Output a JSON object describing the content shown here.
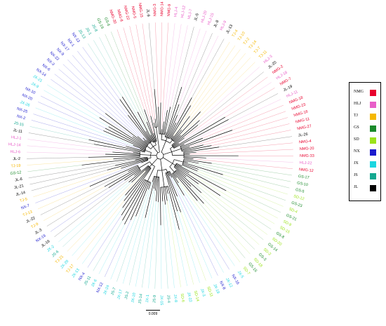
{
  "legend": [
    {
      "label": "NMG",
      "color": "#e8002d"
    },
    {
      "label": "HLJ",
      "color": "#e85ec8"
    },
    {
      "label": "TJ",
      "color": "#f5b700"
    },
    {
      "label": "GS",
      "color": "#1a8a2a"
    },
    {
      "label": "SD",
      "color": "#9be31a"
    },
    {
      "label": "NX",
      "color": "#1a1acd"
    },
    {
      "label": "JX",
      "color": "#1ad6e0"
    },
    {
      "label": "JS",
      "color": "#14a890"
    },
    {
      "label": "JL",
      "color": "#000000"
    }
  ],
  "scale_bar": {
    "label": "0.009"
  },
  "tips": [
    {
      "label": "NMG-3",
      "group": "NMG"
    },
    {
      "label": "NMG-14",
      "group": "NMG"
    },
    {
      "label": "NMG-9",
      "group": "NMG"
    },
    {
      "label": "HLJ-4",
      "group": "HLJ"
    },
    {
      "label": "HLJ-12",
      "group": "HLJ"
    },
    {
      "label": "HLJ-7",
      "group": "HLJ"
    },
    {
      "label": "JL-5",
      "group": "JL"
    },
    {
      "label": "HLJ-20",
      "group": "HLJ"
    },
    {
      "label": "HLJ-15",
      "group": "HLJ"
    },
    {
      "label": "JL-8",
      "group": "JL"
    },
    {
      "label": "HLJ-9",
      "group": "HLJ"
    },
    {
      "label": "JL-13",
      "group": "JL"
    },
    {
      "label": "TJ-4",
      "group": "TJ"
    },
    {
      "label": "TJ-10",
      "group": "TJ"
    },
    {
      "label": "TJ-2",
      "group": "TJ"
    },
    {
      "label": "TJ-14",
      "group": "TJ"
    },
    {
      "label": "TJ-7",
      "group": "TJ"
    },
    {
      "label": "TJ-11",
      "group": "TJ"
    },
    {
      "label": "HLJ-3",
      "group": "HLJ"
    },
    {
      "label": "JL-20",
      "group": "JL"
    },
    {
      "label": "NMG-2",
      "group": "NMG"
    },
    {
      "label": "HLJ-18",
      "group": "HLJ"
    },
    {
      "label": "NMG-7",
      "group": "NMG"
    },
    {
      "label": "JL-19",
      "group": "JL"
    },
    {
      "label": "HLJ-11",
      "group": "HLJ"
    },
    {
      "label": "NMG-18",
      "group": "NMG"
    },
    {
      "label": "NMG-23",
      "group": "NMG"
    },
    {
      "label": "NMG-16",
      "group": "NMG"
    },
    {
      "label": "NMG-11",
      "group": "NMG"
    },
    {
      "label": "NMG-27",
      "group": "NMG"
    },
    {
      "label": "JL-26",
      "group": "JL"
    },
    {
      "label": "NMG-4",
      "group": "NMG"
    },
    {
      "label": "NMG-20",
      "group": "NMG"
    },
    {
      "label": "NMG-33",
      "group": "NMG"
    },
    {
      "label": "HLJ-22",
      "group": "HLJ"
    },
    {
      "label": "NMG-12",
      "group": "NMG"
    },
    {
      "label": "GS-17",
      "group": "GS"
    },
    {
      "label": "GS-10",
      "group": "GS"
    },
    {
      "label": "GS-5",
      "group": "GS"
    },
    {
      "label": "SD-12",
      "group": "SD"
    },
    {
      "label": "GS-23",
      "group": "GS"
    },
    {
      "label": "SD-4",
      "group": "SD"
    },
    {
      "label": "GS-21",
      "group": "GS"
    },
    {
      "label": "SD-9",
      "group": "SD"
    },
    {
      "label": "SD-15",
      "group": "SD"
    },
    {
      "label": "GS-8",
      "group": "GS"
    },
    {
      "label": "SD-20",
      "group": "SD"
    },
    {
      "label": "GS-14",
      "group": "GS"
    },
    {
      "label": "SD-2",
      "group": "SD"
    },
    {
      "label": "GS-3",
      "group": "GS"
    },
    {
      "label": "SD-18",
      "group": "SD"
    },
    {
      "label": "GS-16",
      "group": "GS"
    },
    {
      "label": "SD-7",
      "group": "SD"
    },
    {
      "label": "JX-5",
      "group": "JX"
    },
    {
      "label": "NX-16",
      "group": "NX"
    },
    {
      "label": "JX-12",
      "group": "JX"
    },
    {
      "label": "NX-8",
      "group": "NX"
    },
    {
      "label": "JX-19",
      "group": "JX"
    },
    {
      "label": "SD-11",
      "group": "SD"
    },
    {
      "label": "JX-3",
      "group": "JX"
    },
    {
      "label": "SD-14",
      "group": "SD"
    },
    {
      "label": "JX-22",
      "group": "JX"
    },
    {
      "label": "SD-6",
      "group": "SD"
    },
    {
      "label": "JX-8",
      "group": "JX"
    },
    {
      "label": "JS-4",
      "group": "JS"
    },
    {
      "label": "JX-15",
      "group": "JX"
    },
    {
      "label": "JS-9",
      "group": "JS"
    },
    {
      "label": "JX-1",
      "group": "JX"
    },
    {
      "label": "JS-14",
      "group": "JS"
    },
    {
      "label": "JX-10",
      "group": "JX"
    },
    {
      "label": "JS-2",
      "group": "JS"
    },
    {
      "label": "JX-17",
      "group": "JX"
    },
    {
      "label": "JS-7",
      "group": "JS"
    },
    {
      "label": "JX-24",
      "group": "JX"
    },
    {
      "label": "NX-12",
      "group": "NX"
    },
    {
      "label": "JX-6",
      "group": "JX"
    },
    {
      "label": "JS-11",
      "group": "JS"
    },
    {
      "label": "NX-4",
      "group": "NX"
    },
    {
      "label": "JX-13",
      "group": "JX"
    },
    {
      "label": "TJ-17",
      "group": "TJ"
    },
    {
      "label": "JX-20",
      "group": "JX"
    },
    {
      "label": "TJ-21",
      "group": "TJ"
    },
    {
      "label": "JS-6",
      "group": "JS"
    },
    {
      "label": "JX-2",
      "group": "JX"
    },
    {
      "label": "JL-16",
      "group": "JL"
    },
    {
      "label": "NX-19",
      "group": "NX"
    },
    {
      "label": "JL-3",
      "group": "JL"
    },
    {
      "label": "TJ-9",
      "group": "TJ"
    },
    {
      "label": "JL-22",
      "group": "JL"
    },
    {
      "label": "TJ-13",
      "group": "TJ"
    },
    {
      "label": "NX-7",
      "group": "NX"
    },
    {
      "label": "TJ-5",
      "group": "TJ"
    },
    {
      "label": "JL-14",
      "group": "JL"
    },
    {
      "label": "JL-21",
      "group": "JL"
    },
    {
      "label": "JL-6",
      "group": "JL"
    },
    {
      "label": "GS-12",
      "group": "GS"
    },
    {
      "label": "TJ-19",
      "group": "TJ"
    },
    {
      "label": "JL-2",
      "group": "JL"
    },
    {
      "label": "HLJ-6",
      "group": "HLJ"
    },
    {
      "label": "HLJ-14",
      "group": "HLJ"
    },
    {
      "label": "HLJ-1",
      "group": "HLJ"
    },
    {
      "label": "JL-11",
      "group": "JL"
    },
    {
      "label": "JS-15",
      "group": "JS"
    },
    {
      "label": "NX-2",
      "group": "NX"
    },
    {
      "label": "NX-25",
      "group": "NX"
    },
    {
      "label": "JX-26",
      "group": "JX"
    },
    {
      "label": "NX-20",
      "group": "NX"
    },
    {
      "label": "NX-10",
      "group": "NX"
    },
    {
      "label": "JX-9",
      "group": "JX"
    },
    {
      "label": "JX-21",
      "group": "JX"
    },
    {
      "label": "NX-14",
      "group": "NX"
    },
    {
      "label": "NX-6",
      "group": "NX"
    },
    {
      "label": "NX-3",
      "group": "NX"
    },
    {
      "label": "NX-22",
      "group": "NX"
    },
    {
      "label": "NX-9",
      "group": "NX"
    },
    {
      "label": "NX-17",
      "group": "NX"
    },
    {
      "label": "NX-1",
      "group": "NX"
    },
    {
      "label": "NX-13",
      "group": "NX"
    },
    {
      "label": "JS-13",
      "group": "JS"
    },
    {
      "label": "JS-1",
      "group": "JS"
    },
    {
      "label": "JS-8",
      "group": "JS"
    },
    {
      "label": "GS-19",
      "group": "GS"
    },
    {
      "label": "GS-6",
      "group": "GS"
    },
    {
      "label": "NMG-30",
      "group": "NMG"
    },
    {
      "label": "NMG-8",
      "group": "NMG"
    },
    {
      "label": "NMG-22",
      "group": "NMG"
    },
    {
      "label": "NMG-5",
      "group": "NMG"
    },
    {
      "label": "NMG-15",
      "group": "NMG"
    },
    {
      "label": "JL-9",
      "group": "JL"
    }
  ]
}
